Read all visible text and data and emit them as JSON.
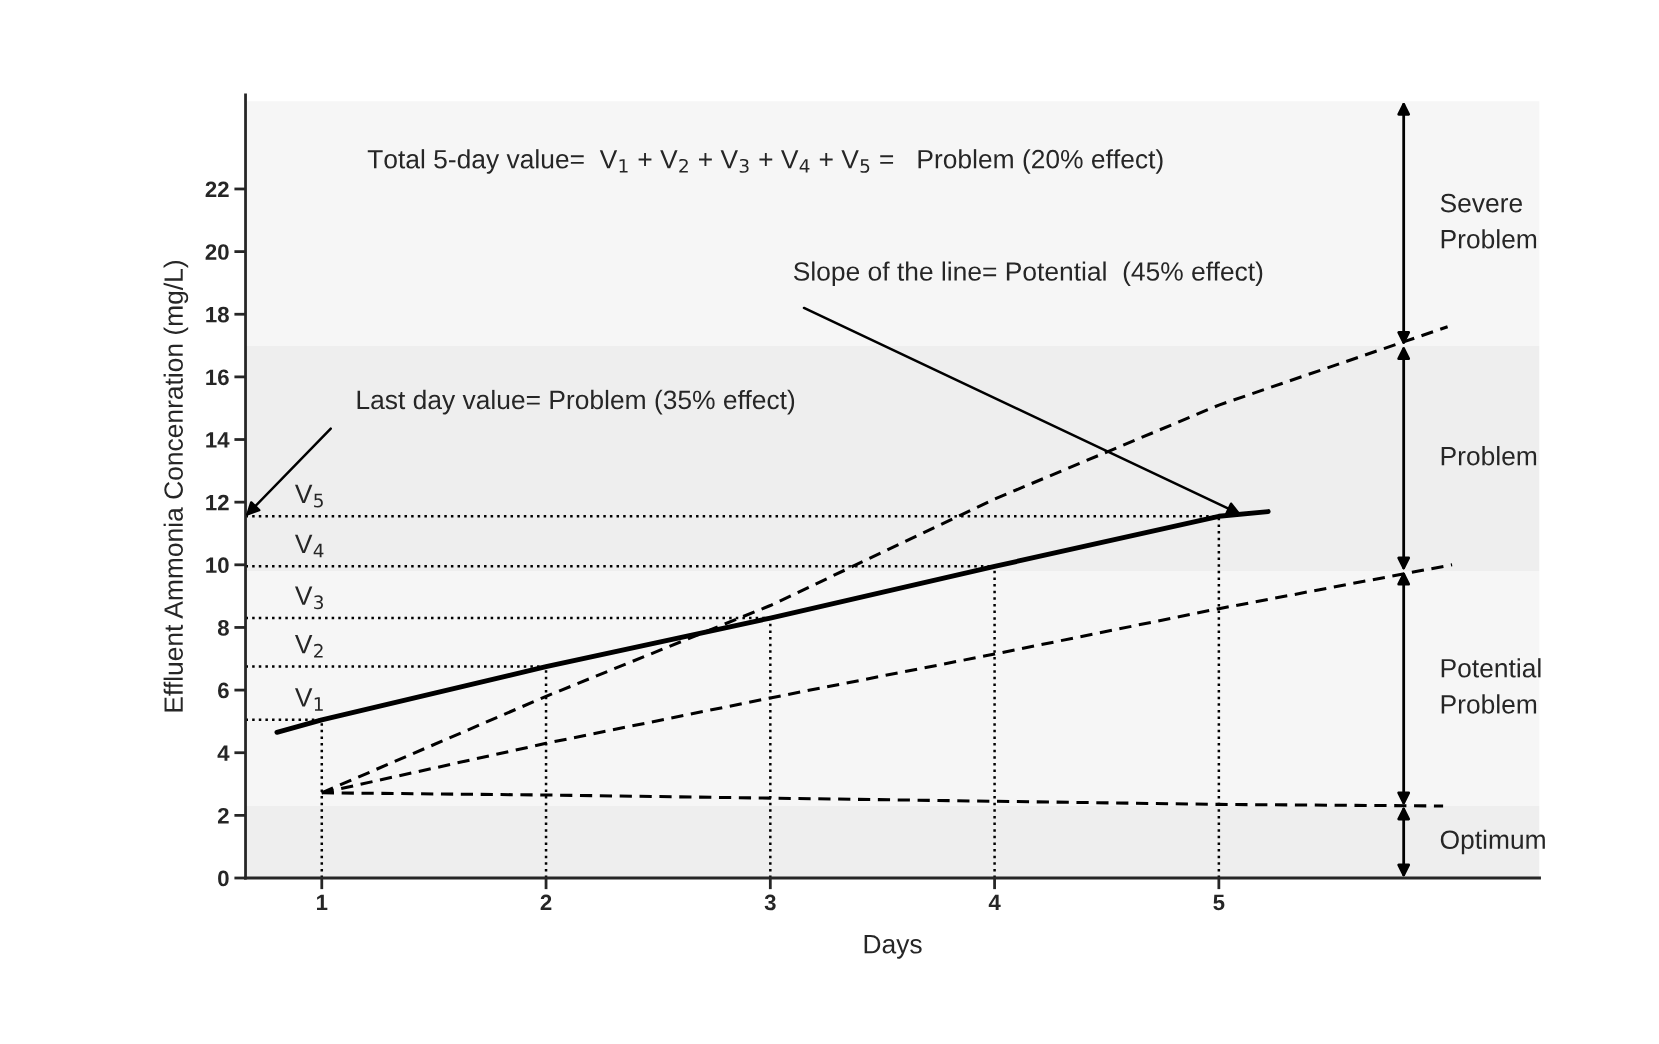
{
  "chart_data": {
    "type": "line",
    "xlabel": "Days",
    "ylabel": "Effluent Ammonia Concenration (mg/L)",
    "xlim": [
      0.66,
      6.43
    ],
    "ylim": [
      0,
      25
    ],
    "xticks": [
      1,
      2,
      3,
      4,
      5
    ],
    "yticks": [
      0,
      2,
      4,
      6,
      8,
      10,
      12,
      14,
      16,
      18,
      20,
      22
    ],
    "grid": false,
    "legend": false,
    "marker": "none",
    "series": [
      {
        "color": "#000000",
        "line_style": "solid",
        "x": [
          0.8,
          1,
          2,
          3,
          4,
          5,
          5.22
        ],
        "values": [
          4.65,
          5.05,
          6.75,
          8.3,
          9.95,
          11.55,
          11.7
        ]
      },
      {
        "color": "#000000",
        "line_style": "dashed",
        "x": [
          1,
          2,
          3,
          4,
          5,
          6.02
        ],
        "values": [
          2.72,
          5.8,
          8.7,
          12.1,
          15.1,
          17.6
        ]
      },
      {
        "color": "#000000",
        "line_style": "dashed",
        "x": [
          1,
          2,
          3,
          4,
          5,
          6.04
        ],
        "values": [
          2.72,
          4.3,
          5.75,
          7.15,
          8.6,
          10.0
        ]
      },
      {
        "color": "#000000",
        "line_style": "dashed",
        "x": [
          1,
          2,
          3,
          4,
          5,
          6.0
        ],
        "values": [
          2.72,
          2.65,
          2.55,
          2.45,
          2.35,
          2.3
        ]
      }
    ],
    "ref_lines": [
      {
        "axis": "y",
        "value": 5.05,
        "label": "V$_{1}$",
        "line_style": "dotted"
      },
      {
        "axis": "y",
        "value": 6.75,
        "label": "V$_{2}$",
        "line_style": "dotted"
      },
      {
        "axis": "y",
        "value": 8.3,
        "label": "V$_{3}$",
        "line_style": "dotted"
      },
      {
        "axis": "y",
        "value": 9.95,
        "label": "V$_{4}$",
        "line_style": "dotted"
      },
      {
        "axis": "y",
        "value": 11.55,
        "label": "V$_{5}$",
        "line_style": "dotted"
      },
      {
        "axis": "x",
        "value": 1,
        "line_style": "dotted"
      },
      {
        "axis": "x",
        "value": 2,
        "line_style": "dotted"
      },
      {
        "axis": "x",
        "value": 3,
        "line_style": "dotted"
      },
      {
        "axis": "x",
        "value": 4,
        "line_style": "dotted"
      },
      {
        "axis": "x",
        "value": 5,
        "line_style": "dotted"
      }
    ],
    "bands": [
      {
        "axis": "y",
        "from": 0,
        "to": 2.3,
        "label": "Optimum",
        "color": "#eeeeee"
      },
      {
        "axis": "y",
        "from": 2.3,
        "to": 9.8,
        "label": "Potential\nProblem",
        "color": "#f6f6f6"
      },
      {
        "axis": "y",
        "from": 9.8,
        "to": 17.0,
        "label": "Problem",
        "color": "#eeeeee"
      },
      {
        "axis": "y",
        "from": 17.0,
        "to": 24.8,
        "label": "Severe\nProblem",
        "color": "#f6f6f6"
      }
    ],
    "annotations": [
      "Total 5-day value=  V$_{1}$ + V$_{2}$ + V$_{3}$ + V$_{4}$ + V$_{5}$ =   Problem (20% effect)",
      {
        "text": "Last day value= Problem (35% effect)",
        "x": 0.66,
        "y": 11.55
      },
      {
        "text": "Slope of the line= Potential  (45% effect)",
        "x": 5.1,
        "y": 11.6
      }
    ]
  }
}
